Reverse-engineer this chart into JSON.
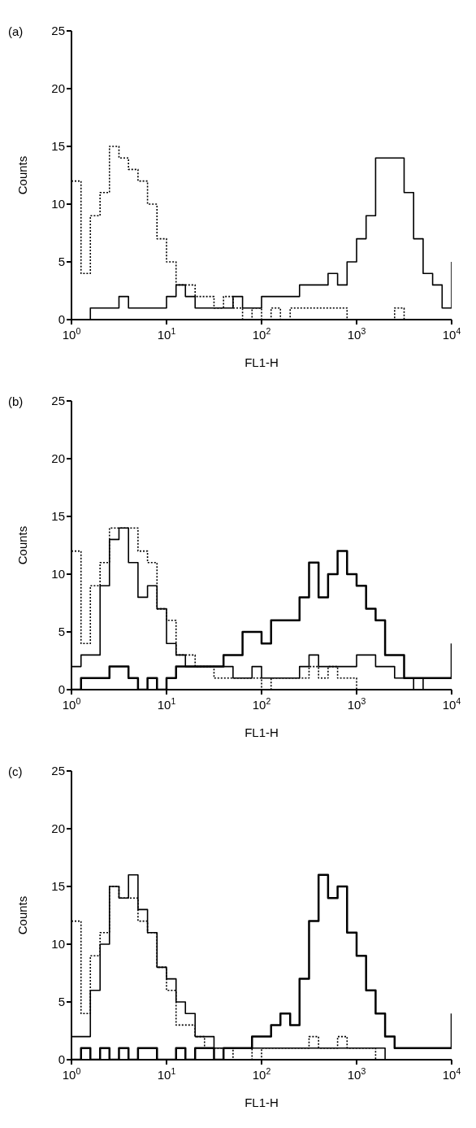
{
  "chart_data": [
    {
      "type": "step",
      "title": "(a)",
      "xlabel": "FL1-H",
      "ylabel": "Counts",
      "log": "x",
      "marker": "none",
      "xlim": [
        1,
        10000
      ],
      "xticks": [
        {
          "value": 1,
          "label": "10$^{0}$"
        },
        {
          "value": 10,
          "label": "10$^{1}$"
        },
        {
          "value": 100,
          "label": "10$^{2}$"
        },
        {
          "value": 1000,
          "label": "10$^{3}$"
        },
        {
          "value": 10000,
          "label": "10$^{4}$"
        }
      ],
      "ylim": [
        0,
        25
      ],
      "yticks": [
        0,
        5,
        10,
        15,
        20,
        25
      ],
      "x": [
        1,
        1.26,
        1.58,
        2,
        2.51,
        3.16,
        3.98,
        5.01,
        6.31,
        7.94,
        10,
        12.6,
        15.8,
        20,
        25.1,
        31.6,
        39.8,
        50.1,
        63.1,
        79.4,
        100,
        126,
        158,
        200,
        251,
        316,
        398,
        501,
        631,
        794,
        1000,
        1259,
        1585,
        1995,
        2512,
        3162,
        3981,
        5012,
        6310,
        7943,
        10000
      ],
      "series": [
        {
          "color": "#000000",
          "line_style": "dotted",
          "values": [
            12,
            4,
            9,
            11,
            15,
            14,
            13,
            12,
            10,
            7,
            5,
            3,
            3,
            2,
            2,
            1,
            2,
            1,
            0,
            1,
            0,
            1,
            0,
            1,
            1,
            1,
            1,
            1,
            1,
            0,
            0,
            0,
            0,
            0,
            1,
            0,
            0,
            0,
            0,
            0,
            0
          ]
        },
        {
          "color": "#000000",
          "line_style": "solid",
          "values": [
            0,
            0,
            1,
            1,
            1,
            2,
            1,
            1,
            1,
            1,
            2,
            3,
            2,
            1,
            1,
            1,
            1,
            2,
            1,
            1,
            2,
            2,
            2,
            2,
            3,
            3,
            3,
            4,
            3,
            5,
            7,
            9,
            14,
            14,
            14,
            11,
            7,
            4,
            3,
            1,
            5
          ]
        }
      ]
    },
    {
      "type": "step",
      "title": "(b)",
      "xlabel": "FL1-H",
      "ylabel": "Counts",
      "log": "x",
      "marker": "none",
      "xlim": [
        1,
        10000
      ],
      "xticks": [
        {
          "value": 1,
          "label": "10$^{0}$"
        },
        {
          "value": 10,
          "label": "10$^{1}$"
        },
        {
          "value": 100,
          "label": "10$^{2}$"
        },
        {
          "value": 1000,
          "label": "10$^{3}$"
        },
        {
          "value": 10000,
          "label": "10$^{4}$"
        }
      ],
      "ylim": [
        0,
        25
      ],
      "yticks": [
        0,
        5,
        10,
        15,
        20,
        25
      ],
      "x": [
        1,
        1.26,
        1.58,
        2,
        2.51,
        3.16,
        3.98,
        5.01,
        6.31,
        7.94,
        10,
        12.6,
        15.8,
        20,
        25.1,
        31.6,
        39.8,
        50.1,
        63.1,
        79.4,
        100,
        126,
        158,
        200,
        251,
        316,
        398,
        501,
        631,
        794,
        1000,
        1259,
        1585,
        1995,
        2512,
        3162,
        3981,
        5012,
        6310,
        7943,
        10000
      ],
      "series": [
        {
          "color": "#000000",
          "line_style": "dotted",
          "values": [
            12,
            4,
            9,
            11,
            14,
            14,
            14,
            12,
            11,
            7,
            6,
            3,
            3,
            2,
            2,
            1,
            1,
            1,
            1,
            1,
            0,
            1,
            1,
            1,
            1,
            2,
            1,
            2,
            1,
            1,
            0,
            0,
            0,
            0,
            0,
            0,
            0,
            0,
            0,
            0,
            0
          ]
        },
        {
          "color": "#000000",
          "line_style": "solid",
          "values": [
            2,
            3,
            3,
            9,
            13,
            14,
            11,
            8,
            9,
            7,
            4,
            3,
            2,
            2,
            2,
            2,
            2,
            1,
            1,
            2,
            1,
            1,
            1,
            1,
            2,
            3,
            2,
            2,
            2,
            2,
            3,
            3,
            2,
            2,
            1,
            1,
            0,
            1,
            1,
            1,
            1
          ]
        },
        {
          "color": "#000000",
          "line_style": "solid",
          "values": [
            0,
            1,
            1,
            1,
            2,
            2,
            1,
            0,
            1,
            0,
            1,
            2,
            2,
            2,
            2,
            2,
            3,
            3,
            5,
            5,
            4,
            6,
            6,
            6,
            8,
            11,
            8,
            10,
            12,
            10,
            9,
            7,
            6,
            3,
            3,
            1,
            1,
            1,
            1,
            1,
            4
          ]
        }
      ]
    },
    {
      "type": "step",
      "title": "(c)",
      "xlabel": "FL1-H",
      "ylabel": "Counts",
      "log": "x",
      "marker": "none",
      "xlim": [
        1,
        10000
      ],
      "xticks": [
        {
          "value": 1,
          "label": "10$^{0}$"
        },
        {
          "value": 10,
          "label": "10$^{1}$"
        },
        {
          "value": 100,
          "label": "10$^{2}$"
        },
        {
          "value": 1000,
          "label": "10$^{3}$"
        },
        {
          "value": 10000,
          "label": "10$^{4}$"
        }
      ],
      "ylim": [
        0,
        25
      ],
      "yticks": [
        0,
        5,
        10,
        15,
        20,
        25
      ],
      "x": [
        1,
        1.26,
        1.58,
        2,
        2.51,
        3.16,
        3.98,
        5.01,
        6.31,
        7.94,
        10,
        12.6,
        15.8,
        20,
        25.1,
        31.6,
        39.8,
        50.1,
        63.1,
        79.4,
        100,
        126,
        158,
        200,
        251,
        316,
        398,
        501,
        631,
        794,
        1000,
        1259,
        1585,
        1995,
        2512,
        3162,
        3981,
        5012,
        6310,
        7943,
        10000
      ],
      "series": [
        {
          "color": "#000000",
          "line_style": "dotted",
          "values": [
            12,
            4,
            9,
            11,
            15,
            14,
            14,
            12,
            11,
            8,
            6,
            3,
            3,
            2,
            1,
            1,
            0,
            1,
            1,
            0,
            1,
            1,
            1,
            1,
            1,
            2,
            1,
            1,
            2,
            1,
            1,
            1,
            0,
            0,
            0,
            0,
            0,
            0,
            0,
            0,
            0
          ]
        },
        {
          "color": "#000000",
          "line_style": "solid",
          "values": [
            2,
            2,
            6,
            10,
            15,
            14,
            16,
            13,
            11,
            8,
            7,
            5,
            4,
            2,
            2,
            1,
            1,
            1,
            1,
            1,
            1,
            1,
            1,
            1,
            1,
            1,
            1,
            1,
            1,
            1,
            1,
            1,
            1,
            0,
            0,
            0,
            0,
            0,
            0,
            0,
            0
          ]
        },
        {
          "color": "#000000",
          "line_style": "solid",
          "values": [
            0,
            1,
            0,
            1,
            0,
            1,
            0,
            1,
            1,
            0,
            0,
            1,
            0,
            1,
            1,
            0,
            1,
            1,
            1,
            2,
            2,
            3,
            4,
            3,
            7,
            12,
            16,
            14,
            15,
            11,
            9,
            6,
            4,
            2,
            1,
            1,
            1,
            1,
            1,
            1,
            4
          ]
        }
      ]
    }
  ]
}
